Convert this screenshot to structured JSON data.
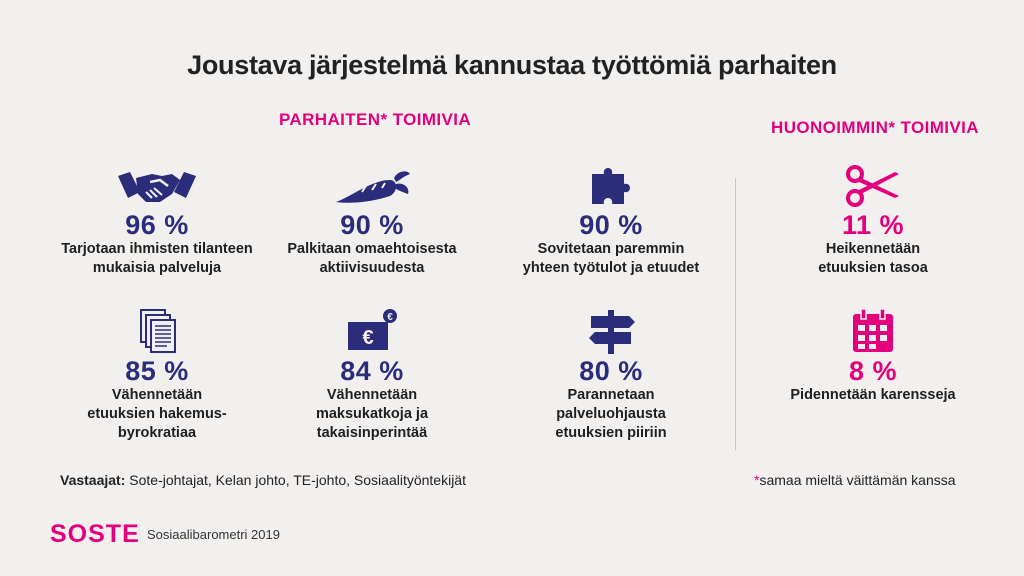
{
  "title": "Joustava järjestelmä kannustaa työttömiä parhaiten",
  "sections": {
    "best_label": "PARHAITEN* TOIMIVIA",
    "worst_label": "HUONOIMMIN* TOIMIVIA"
  },
  "stats": [
    {
      "pct": "96 %",
      "desc": "Tarjotaan ihmisten tilanteen\nmukaisia palveluja",
      "icon": "handshake-icon"
    },
    {
      "pct": "90 %",
      "desc": "Palkitaan omaehtoisesta\naktiivisuudesta",
      "icon": "carrot-icon"
    },
    {
      "pct": "90 %",
      "desc": "Sovitetaan paremmin\nyhteen työtulot ja etuudet",
      "icon": "puzzle-icon"
    },
    {
      "pct": "11 %",
      "desc": "Heikennetään\netuuksien tasoa",
      "icon": "scissors-icon"
    },
    {
      "pct": "85 %",
      "desc": "Vähennetään\netuuksien hakemus-\nbyrokratiaa",
      "icon": "documents-icon"
    },
    {
      "pct": "84 %",
      "desc": "Vähennetään\nmaksukatkoja ja\ntakaisinperintää",
      "icon": "euro-money-icon"
    },
    {
      "pct": "80 %",
      "desc": "Parannetaan\npalveluohjausta\netuuksien piiriin",
      "icon": "signpost-icon"
    },
    {
      "pct": "8 %",
      "desc": "Pidennetään karensseja",
      "icon": "calendar-icon"
    }
  ],
  "footer": {
    "respondents_label": "Vastaajat:",
    "respondents_text": " Sote-johtajat, Kelan johto, TE-johto, Sosiaalityöntekijät",
    "footnote_star": "*",
    "footnote_text": "samaa mieltä väittämän kanssa",
    "logo": "SOSTE",
    "source": "Sosiaalibarometri 2019"
  },
  "colors": {
    "accent": "#e4007c",
    "navy": "#2b2d7a",
    "background": "#f2f0ef"
  }
}
